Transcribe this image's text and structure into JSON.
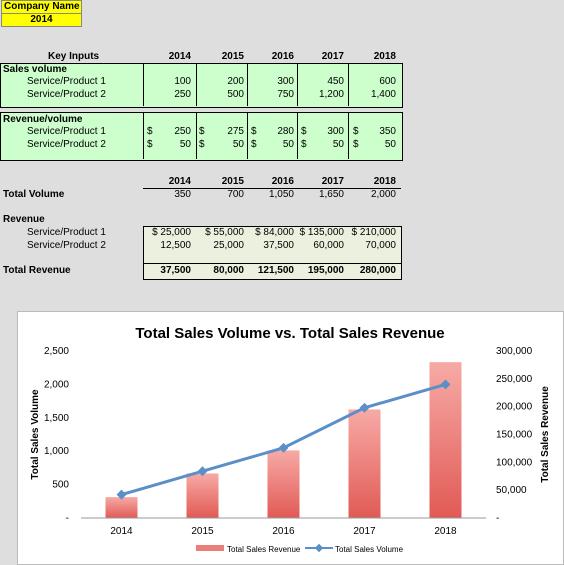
{
  "header": {
    "company_name": "Company Name",
    "year": "2014"
  },
  "key_inputs": {
    "title": "Key Inputs",
    "years": [
      "2014",
      "2015",
      "2016",
      "2017",
      "2018"
    ],
    "sales_volume_label": "Sales volume",
    "sales_rows": [
      {
        "label": "Service/Product 1",
        "values": [
          "100",
          "200",
          "300",
          "450",
          "600"
        ]
      },
      {
        "label": "Service/Product 2",
        "values": [
          "250",
          "500",
          "750",
          "1,200",
          "1,400"
        ]
      }
    ],
    "revenue_volume_label": "Revenue/volume",
    "currency": "$",
    "revenue_rows": [
      {
        "label": "Service/Product 1",
        "values": [
          "250",
          "275",
          "280",
          "300",
          "350"
        ]
      },
      {
        "label": "Service/Product 2",
        "values": [
          "50",
          "50",
          "50",
          "50",
          "50"
        ]
      }
    ]
  },
  "summary": {
    "years": [
      "2014",
      "2015",
      "2016",
      "2017",
      "2018"
    ],
    "total_volume_label": "Total Volume",
    "total_volume": [
      "350",
      "700",
      "1,050",
      "1,650",
      "2,000"
    ],
    "revenue_label": "Revenue",
    "revenue_rows": [
      {
        "label": "Service/Product 1",
        "values": [
          "$ 25,000",
          "$ 55,000",
          "$ 84,000",
          "$ 135,000",
          "$ 210,000"
        ]
      },
      {
        "label": "Service/Product 2",
        "values": [
          "12,500",
          "25,000",
          "37,500",
          "60,000",
          "70,000"
        ]
      }
    ],
    "total_revenue_label": "Total Revenue",
    "total_revenue": [
      "37,500",
      "80,000",
      "121,500",
      "195,000",
      "280,000"
    ]
  },
  "chart_data": {
    "type": "bar",
    "title": "Total Sales Volume vs. Total Sales Revenue",
    "categories": [
      "2014",
      "2015",
      "2016",
      "2017",
      "2018"
    ],
    "ylabel": "Total Sales Volume",
    "y2label": "Total Sales Revenue",
    "ylim": [
      0,
      2500
    ],
    "y2lim": [
      0,
      300000
    ],
    "yticks": [
      "-",
      "500",
      "1,000",
      "1,500",
      "2,000",
      "2,500"
    ],
    "y2ticks": [
      "-",
      "50,000",
      "100,000",
      "150,000",
      "200,000",
      "250,000",
      "300,000"
    ],
    "series": [
      {
        "name": "Total Sales Revenue",
        "type": "bar",
        "axis": "right",
        "values": [
          37500,
          80000,
          121500,
          195000,
          280000
        ],
        "color": "#e8605c"
      },
      {
        "name": "Total Sales Volume",
        "type": "line",
        "axis": "left",
        "values": [
          350,
          700,
          1050,
          1650,
          2000
        ],
        "color": "#5b8fc7"
      }
    ],
    "legend": "bottom",
    "grid": false
  }
}
